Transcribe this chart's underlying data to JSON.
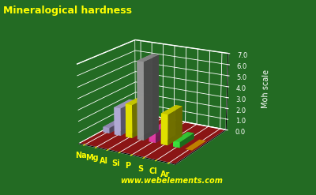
{
  "title": "Mineralogical hardness",
  "ylabel": "Moh scale",
  "website": "www.webelements.com",
  "elements": [
    "Na",
    "Mg",
    "Al",
    "Si",
    "P",
    "S",
    "Cl",
    "Ar"
  ],
  "values": [
    0.5,
    2.5,
    3.0,
    7.0,
    1.0,
    2.75,
    0.5,
    0.01
  ],
  "bar_colors": [
    "#b8aee0",
    "#c8c0f0",
    "#ffff00",
    "#aaaaaa",
    "#ff44bb",
    "#ffff00",
    "#44ff44",
    "#ffaa00"
  ],
  "background_color": "#236b23",
  "title_color": "#ffff00",
  "label_color": "#ffff00",
  "axis_label_color": "#ffffff",
  "tick_color": "#ffffff",
  "grid_color": "#ffffff",
  "floor_color": "#8b1515",
  "wall_color": "#236b23",
  "ylim": [
    0.0,
    7.0
  ],
  "yticks": [
    0.0,
    1.0,
    2.0,
    3.0,
    4.0,
    5.0,
    6.0,
    7.0
  ],
  "figsize": [
    4.0,
    2.47
  ],
  "dpi": 100,
  "elev": 18,
  "azim": -60
}
